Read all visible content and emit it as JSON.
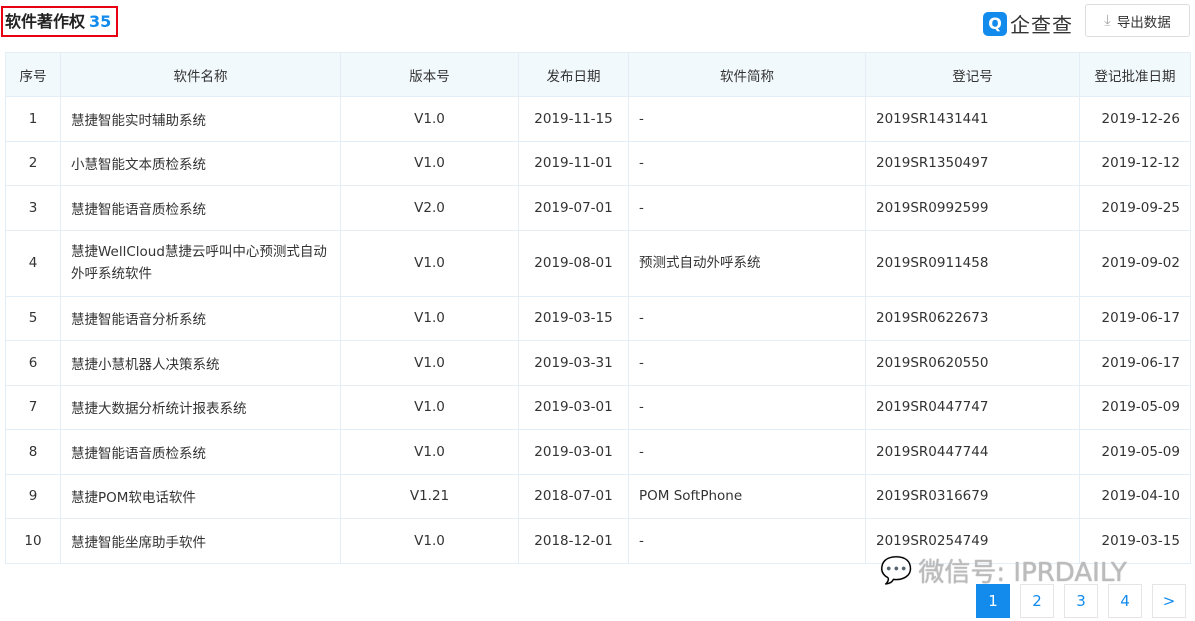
{
  "header": {
    "title": "软件著作权",
    "count": "35",
    "logo_text": "企查查",
    "export_label": "导出数据"
  },
  "table": {
    "columns": [
      "序号",
      "软件名称",
      "版本号",
      "发布日期",
      "软件简称",
      "登记号",
      "登记批准日期"
    ],
    "rows": [
      [
        "1",
        "慧捷智能实时辅助系统",
        "V1.0",
        "2019-11-15",
        "-",
        "2019SR1431441",
        "2019-12-26"
      ],
      [
        "2",
        "小慧智能文本质检系统",
        "V1.0",
        "2019-11-01",
        "-",
        "2019SR1350497",
        "2019-12-12"
      ],
      [
        "3",
        "慧捷智能语音质检系统",
        "V2.0",
        "2019-07-01",
        "-",
        "2019SR0992599",
        "2019-09-25"
      ],
      [
        "4",
        "慧捷WellCloud慧捷云呼叫中心预测式自动外呼系统软件",
        "V1.0",
        "2019-08-01",
        "预测式自动外呼系统",
        "2019SR0911458",
        "2019-09-02"
      ],
      [
        "5",
        "慧捷智能语音分析系统",
        "V1.0",
        "2019-03-15",
        "-",
        "2019SR0622673",
        "2019-06-17"
      ],
      [
        "6",
        "慧捷小慧机器人决策系统",
        "V1.0",
        "2019-03-31",
        "-",
        "2019SR0620550",
        "2019-06-17"
      ],
      [
        "7",
        "慧捷大数据分析统计报表系统",
        "V1.0",
        "2019-03-01",
        "-",
        "2019SR0447747",
        "2019-05-09"
      ],
      [
        "8",
        "慧捷智能语音质检系统",
        "V1.0",
        "2019-03-01",
        "-",
        "2019SR0447744",
        "2019-05-09"
      ],
      [
        "9",
        "慧捷POM软电话软件",
        "V1.21",
        "2018-07-01",
        "POM SoftPhone",
        "2019SR0316679",
        "2019-04-10"
      ],
      [
        "10",
        "慧捷智能坐席助手软件",
        "V1.0",
        "2018-12-01",
        "-",
        "2019SR0254749",
        "2019-03-15"
      ]
    ]
  },
  "watermark": "微信号: IPRDAILY",
  "pagination": {
    "pages": [
      "1",
      "2",
      "3",
      "4"
    ],
    "current": "1",
    "next": ">"
  },
  "colors": {
    "accent": "#128bed",
    "highlight_border": "#e60012"
  }
}
